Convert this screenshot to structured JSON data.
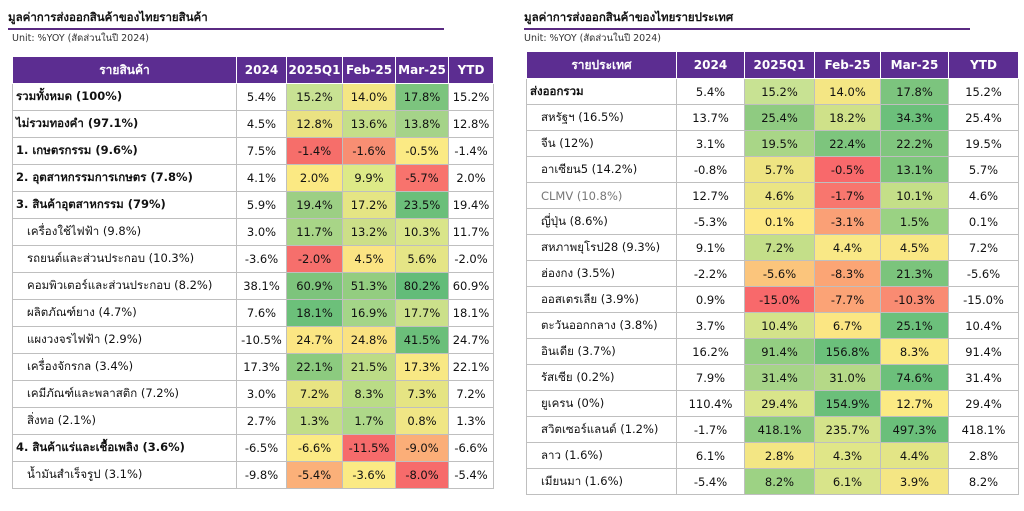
{
  "left": {
    "title": "มูลค่าการส่งออกสินค้าของไทยรายสินค้า",
    "unit": "Unit: %YOY (สัดส่วนในปี 2024)",
    "headers": [
      "รายสินค้า",
      "2024",
      "2025Q1",
      "Feb-25",
      "Mar-25",
      "YTD"
    ],
    "rows": [
      {
        "label": "รวมทั้งหมด (100%)",
        "style": "bold",
        "values": [
          "5.4%",
          "15.2%",
          "14.0%",
          "17.8%",
          "15.2%"
        ],
        "colors": [
          "#c8e293",
          "#f4e684",
          "#7cc47e"
        ]
      },
      {
        "label": "ไม่รวมทองคำ (97.1%)",
        "style": "bold",
        "values": [
          "4.5%",
          "12.8%",
          "13.6%",
          "13.8%",
          "12.8%"
        ],
        "colors": [
          "#eae282",
          "#c5df89",
          "#a5d389"
        ]
      },
      {
        "label": "1. เกษตรกรรม (9.6%)",
        "style": "bold",
        "values": [
          "7.5%",
          "-1.4%",
          "-1.6%",
          "-0.5%",
          "-1.4%"
        ],
        "colors": [
          "#f66e6a",
          "#f88e73",
          "#fbea84"
        ]
      },
      {
        "label": "2. อุตสาหกรรมการเกษตร (7.8%)",
        "style": "bold",
        "values": [
          "4.1%",
          "2.0%",
          "9.9%",
          "-5.7%",
          "2.0%"
        ],
        "colors": [
          "#fbe983",
          "#ddea87",
          "#f8736d"
        ]
      },
      {
        "label": "3. สินค้าอุตสาหกรรม (79%)",
        "style": "bold",
        "values": [
          "5.9%",
          "19.4%",
          "17.2%",
          "23.5%",
          "19.4%"
        ],
        "colors": [
          "#9ccf84",
          "#e5e584",
          "#6bbf7a"
        ]
      },
      {
        "label": "เครื่องใช้ไฟฟ้า (9.8%)",
        "style": "indent",
        "values": [
          "3.0%",
          "11.7%",
          "13.2%",
          "10.3%",
          "11.7%"
        ],
        "colors": [
          "#a8d587",
          "#ccdf88",
          "#d9e58a"
        ]
      },
      {
        "label": "รถยนต์และส่วนประกอบ (10.3%)",
        "style": "indent",
        "values": [
          "-3.6%",
          "-2.0%",
          "4.5%",
          "5.6%",
          "-2.0%"
        ],
        "colors": [
          "#f66f6c",
          "#fbe483",
          "#e5e586"
        ]
      },
      {
        "label": "คอมพิวเตอร์และส่วนประกอบ (8.2%)",
        "style": "indent",
        "values": [
          "38.1%",
          "60.9%",
          "51.3%",
          "80.2%",
          "60.9%"
        ],
        "colors": [
          "#7dc47c",
          "#93cd80",
          "#63bc79"
        ]
      },
      {
        "label": "ผลิตภัณฑ์ยาง (4.7%)",
        "style": "indent",
        "values": [
          "7.6%",
          "18.1%",
          "16.9%",
          "17.7%",
          "18.1%"
        ],
        "colors": [
          "#6cc07a",
          "#a4d588",
          "#cbe08a"
        ]
      },
      {
        "label": "แผงวงจรไฟฟ้า (2.9%)",
        "style": "indent",
        "values": [
          "-10.5%",
          "24.7%",
          "24.8%",
          "41.5%",
          "24.7%"
        ],
        "colors": [
          "#fbe683",
          "#fae281",
          "#6bbf7a"
        ]
      },
      {
        "label": "เครื่องจักรกล (3.4%)",
        "style": "indent",
        "values": [
          "17.3%",
          "22.1%",
          "21.5%",
          "17.3%",
          "22.1%"
        ],
        "colors": [
          "#8ccb7f",
          "#bcdc86",
          "#f8e884"
        ]
      },
      {
        "label": "เคมีภัณฑ์และพลาสติก (7.2%)",
        "style": "indent",
        "values": [
          "3.0%",
          "7.2%",
          "8.3%",
          "7.3%",
          "7.2%"
        ],
        "colors": [
          "#e8e482",
          "#badc86",
          "#e5e483"
        ]
      },
      {
        "label": "สิ่งทอ (2.1%)",
        "style": "indent",
        "values": [
          "2.7%",
          "1.3%",
          "1.7%",
          "0.8%",
          "1.3%"
        ],
        "colors": [
          "#c2de88",
          "#aed889",
          "#f0e685"
        ]
      },
      {
        "label": "4. สินค้าแร่และเชื้อเพลิง (3.6%)",
        "style": "bold",
        "values": [
          "-6.5%",
          "-6.6%",
          "-11.5%",
          "-9.0%",
          "-6.6%"
        ],
        "colors": [
          "#fbea84",
          "#f66b6b",
          "#fbae78"
        ]
      },
      {
        "label": "น้ำมันสำเร็จรูป (3.1%)",
        "style": "indent",
        "values": [
          "-9.8%",
          "-5.4%",
          "-3.6%",
          "-8.0%",
          "-5.4%"
        ],
        "colors": [
          "#fbb079",
          "#fbea84",
          "#f66b6b"
        ]
      }
    ]
  },
  "right": {
    "title": "มูลค่าการส่งออกสินค้าของไทยรายประเทศ",
    "unit": "Unit: %YOY (สัดส่วนในปี 2024)",
    "headers": [
      "รายประเทศ",
      "2024",
      "2025Q1",
      "Feb-25",
      "Mar-25",
      "YTD"
    ],
    "rows": [
      {
        "label": "ส่งออกรวม",
        "style": "bold",
        "values": [
          "5.4%",
          "15.2%",
          "14.0%",
          "17.8%",
          "15.2%"
        ],
        "colors": [
          "#c8e293",
          "#f4e684",
          "#7cc47e"
        ]
      },
      {
        "label": "สหรัฐฯ (16.5%)",
        "style": "indent",
        "values": [
          "13.7%",
          "25.4%",
          "18.2%",
          "34.3%",
          "25.4%"
        ],
        "colors": [
          "#8fcb81",
          "#cfe189",
          "#6cc07b"
        ]
      },
      {
        "label": "จีน (12%)",
        "style": "indent",
        "values": [
          "3.1%",
          "19.5%",
          "22.4%",
          "22.2%",
          "19.5%"
        ],
        "colors": [
          "#a9d687",
          "#7dc57d",
          "#80c67e"
        ]
      },
      {
        "label": "อาเซียน5 (14.2%)",
        "style": "indent",
        "values": [
          "-0.8%",
          "5.7%",
          "-0.5%",
          "13.1%",
          "5.7%"
        ],
        "colors": [
          "#eee482",
          "#f8696b",
          "#7fc67c"
        ]
      },
      {
        "label": "CLMV (10.8%)",
        "style": "indent muted",
        "values": [
          "12.7%",
          "4.6%",
          "-1.7%",
          "10.1%",
          "4.6%"
        ],
        "colors": [
          "#ebe584",
          "#f8766e",
          "#c4df88"
        ]
      },
      {
        "label": "ญี่ปุ่น (8.6%)",
        "style": "indent",
        "values": [
          "-5.3%",
          "0.1%",
          "-3.1%",
          "1.5%",
          "0.1%"
        ],
        "colors": [
          "#fde884",
          "#faa076",
          "#9ad283"
        ]
      },
      {
        "label": "สหภาพยุโรป28 (9.3%)",
        "style": "indent",
        "values": [
          "9.1%",
          "7.2%",
          "4.4%",
          "4.5%",
          "7.2%"
        ],
        "colors": [
          "#c4df89",
          "#f9e886",
          "#f9e784"
        ]
      },
      {
        "label": "ฮ่องกง (3.5%)",
        "style": "indent",
        "values": [
          "-2.2%",
          "-5.6%",
          "-8.3%",
          "21.3%",
          "-5.6%"
        ],
        "colors": [
          "#fbc57c",
          "#fba575",
          "#7bc47c"
        ]
      },
      {
        "label": "ออสเตรเลีย (3.9%)",
        "style": "indent",
        "values": [
          "0.9%",
          "-15.0%",
          "-7.7%",
          "-10.3%",
          "-15.0%"
        ],
        "colors": [
          "#f8696b",
          "#fba376",
          "#f98b72"
        ]
      },
      {
        "label": "ตะวันออกกลาง (3.8%)",
        "style": "indent",
        "values": [
          "3.7%",
          "10.4%",
          "6.7%",
          "25.1%",
          "10.4%"
        ],
        "colors": [
          "#d4e38a",
          "#fbe683",
          "#6cc07b"
        ]
      },
      {
        "label": "อินเดีย (3.7%)",
        "style": "indent",
        "values": [
          "16.2%",
          "91.4%",
          "156.8%",
          "8.3%",
          "91.4%"
        ],
        "colors": [
          "#93ce82",
          "#6bc07b",
          "#fbe984"
        ]
      },
      {
        "label": "รัสเซีย (0.2%)",
        "style": "indent",
        "values": [
          "7.9%",
          "31.4%",
          "31.0%",
          "74.6%",
          "31.4%"
        ],
        "colors": [
          "#a6d488",
          "#b5d987",
          "#6cc07b"
        ]
      },
      {
        "label": "ยูเครน (0%)",
        "style": "indent",
        "values": [
          "110.4%",
          "29.4%",
          "154.9%",
          "12.7%",
          "29.4%"
        ],
        "colors": [
          "#d9e58a",
          "#6bbf7a",
          "#fbea84"
        ]
      },
      {
        "label": "สวิตเซอร์แลนด์ (1.2%)",
        "style": "indent",
        "values": [
          "-1.7%",
          "418.1%",
          "235.7%",
          "497.3%",
          "418.1%"
        ],
        "colors": [
          "#8dcb81",
          "#d4e38a",
          "#6abf7a"
        ]
      },
      {
        "label": "ลาว (1.6%)",
        "style": "indent",
        "values": [
          "6.1%",
          "2.8%",
          "4.3%",
          "4.4%",
          "2.8%"
        ],
        "colors": [
          "#f3e684",
          "#e0e688",
          "#e3e586"
        ]
      },
      {
        "label": "เมียนมา (1.6%)",
        "style": "indent",
        "values": [
          "-5.4%",
          "8.2%",
          "6.1%",
          "3.9%",
          "8.2%"
        ],
        "colors": [
          "#9dd284",
          "#d8e48a",
          "#f4e684"
        ]
      }
    ]
  }
}
